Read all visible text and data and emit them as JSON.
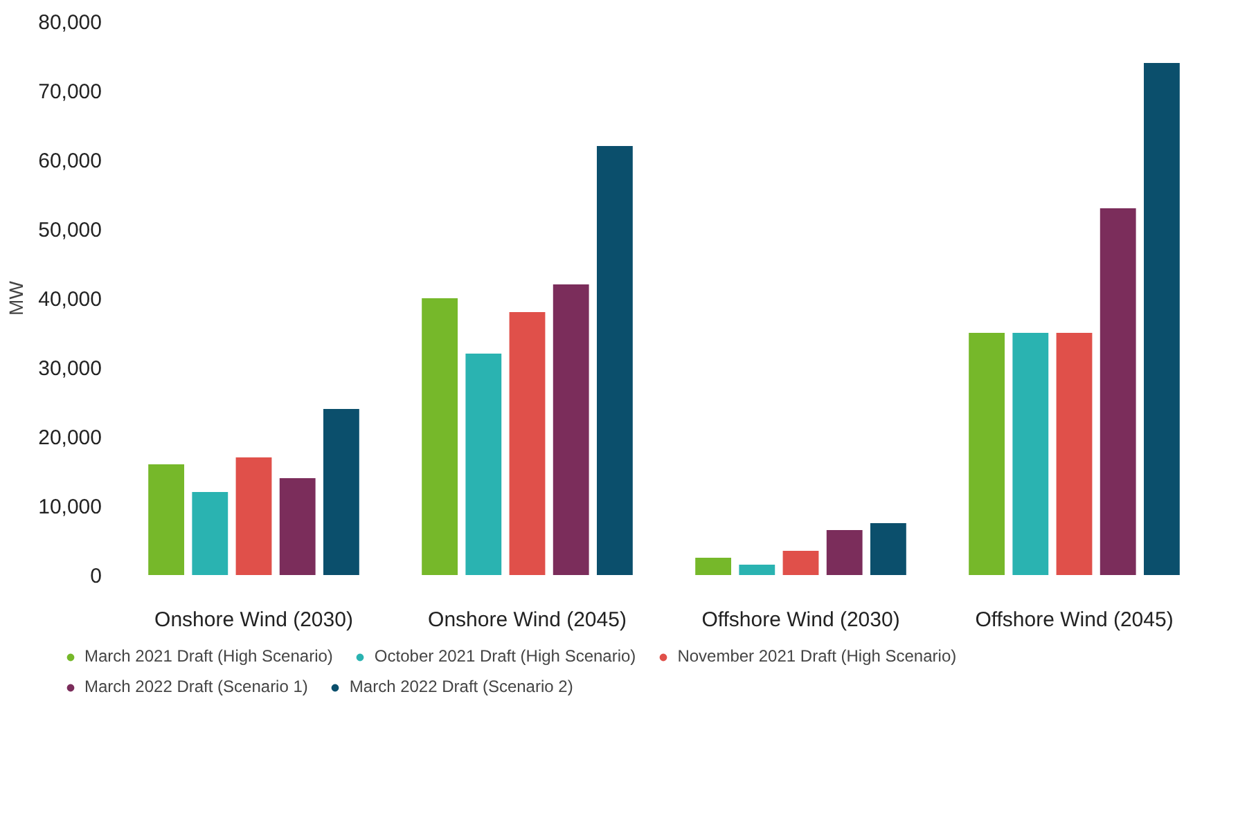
{
  "chart_data": {
    "type": "bar",
    "ylabel": "MW",
    "categories": [
      "Onshore Wind (2030)",
      "Onshore Wind (2045)",
      "Offshore Wind (2030)",
      "Offshore Wind (2045)"
    ],
    "series": [
      {
        "name": "March 2021 Draft (High Scenario)",
        "color": "#76b82a",
        "values": [
          16000,
          40000,
          2500,
          35000
        ]
      },
      {
        "name": "October 2021 Draft (High Scenario)",
        "color": "#2ab3b1",
        "values": [
          12000,
          32000,
          1500,
          35000
        ]
      },
      {
        "name": "November 2021 Draft (High Scenario)",
        "color": "#e0504a",
        "values": [
          17000,
          38000,
          3500,
          35000
        ]
      },
      {
        "name": "March 2022 Draft (Scenario 1)",
        "color": "#7b2d5b",
        "values": [
          14000,
          42000,
          6500,
          53000
        ]
      },
      {
        "name": "March 2022 Draft (Scenario 2)",
        "color": "#0b4f6c",
        "values": [
          24000,
          62000,
          7500,
          74000
        ]
      }
    ],
    "ylim": [
      0,
      80000
    ],
    "yticks": [
      {
        "value": 0,
        "label": "0"
      },
      {
        "value": 10000,
        "label": "10,000"
      },
      {
        "value": 20000,
        "label": "20,000"
      },
      {
        "value": 30000,
        "label": "30,000"
      },
      {
        "value": 40000,
        "label": "40,000"
      },
      {
        "value": 50000,
        "label": "50,000"
      },
      {
        "value": 60000,
        "label": "60,000"
      },
      {
        "value": 70000,
        "label": "70,000"
      },
      {
        "value": 80000,
        "label": "80,000"
      }
    ],
    "grid": false,
    "legend": "bottom"
  }
}
